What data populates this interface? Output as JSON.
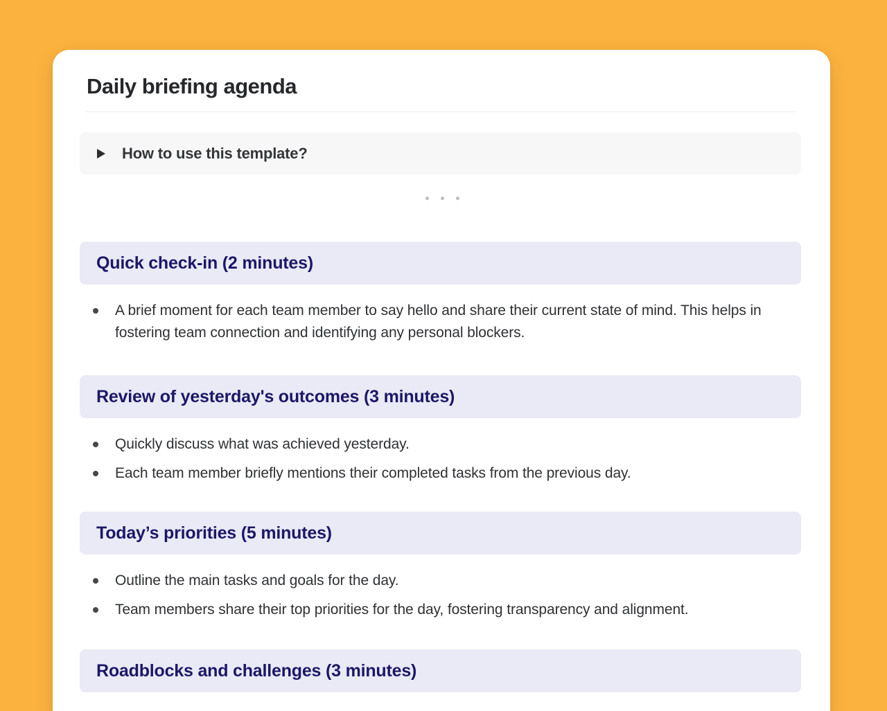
{
  "document": {
    "title": "Daily briefing agenda",
    "collapsible": {
      "label": "How to use this template?"
    },
    "sections": [
      {
        "heading": "Quick check-in (2 minutes)",
        "bullets": [
          "A brief moment for each team member to say hello and share their current state of mind. This helps in fostering team connection and identifying any personal blockers."
        ]
      },
      {
        "heading": "Review of yesterday's outcomes (3 minutes)",
        "bullets": [
          "Quickly discuss what was achieved yesterday.",
          "Each team member briefly mentions their completed tasks from the previous day."
        ]
      },
      {
        "heading": "Today’s priorities (5 minutes)",
        "bullets": [
          "Outline the main tasks and goals for the day.",
          "Team members share their top priorities for the day, fostering transparency and alignment."
        ]
      },
      {
        "heading": "Roadblocks and challenges (3 minutes)",
        "bullets": []
      }
    ]
  },
  "icons": {
    "collapsible_toggle": "triangle-right-icon",
    "separator": "ellipsis-dots"
  },
  "colors": {
    "page_background": "#FBB23E",
    "card_background": "#FFFFFF",
    "title_text": "#26282B",
    "section_heading_background": "#EAEAF6",
    "section_heading_text": "#1D1768",
    "collapsible_background": "#F7F7F7",
    "collapsible_text": "#333538",
    "body_text": "#2E3033",
    "separator_dot": "#BDBDBD",
    "divider": "#EDEDEE"
  }
}
